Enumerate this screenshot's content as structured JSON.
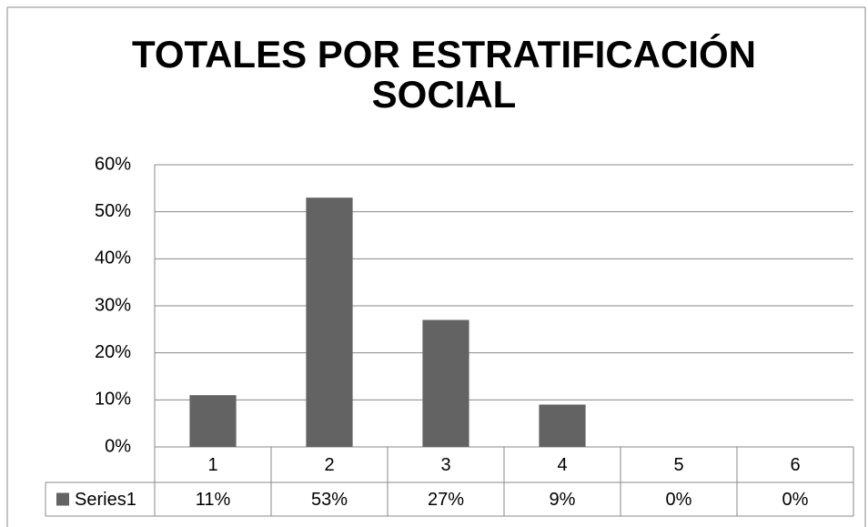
{
  "chart_data": {
    "type": "bar",
    "title": "TOTALES POR ESTRATIFICACIÓN SOCIAL",
    "categories": [
      "1",
      "2",
      "3",
      "4",
      "5",
      "6"
    ],
    "series": [
      {
        "name": "Series1",
        "color": "#636363",
        "values": [
          11,
          53,
          27,
          9,
          0,
          0
        ],
        "value_labels": [
          "11%",
          "53%",
          "27%",
          "9%",
          "0%",
          "0%"
        ]
      }
    ],
    "ylim": [
      0,
      60
    ],
    "yticks": [
      {
        "value": 0,
        "label": "0%"
      },
      {
        "value": 10,
        "label": "10%"
      },
      {
        "value": 20,
        "label": "20%"
      },
      {
        "value": 30,
        "label": "30%"
      },
      {
        "value": 40,
        "label": "40%"
      },
      {
        "value": 50,
        "label": "50%"
      },
      {
        "value": 60,
        "label": "60%"
      }
    ],
    "grid": true
  }
}
